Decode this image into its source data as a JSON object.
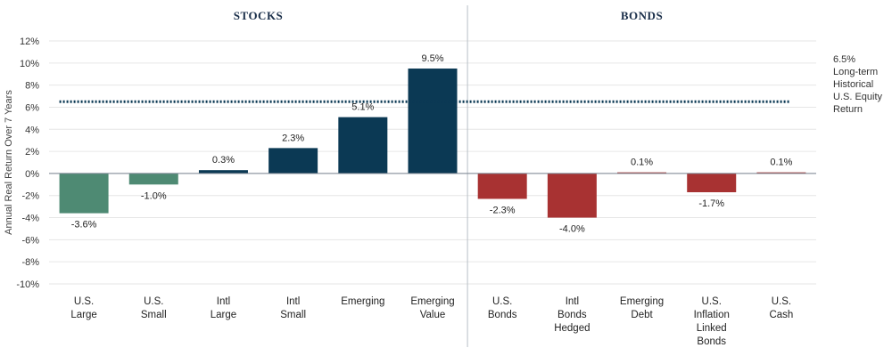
{
  "chart_data": {
    "type": "bar",
    "ylabel": "Annual Real Return Over 7 Years",
    "ylim": [
      -10,
      12
    ],
    "yticks": [
      "12%",
      "10%",
      "8%",
      "6%",
      "4%",
      "2%",
      "0%",
      "-2%",
      "-4%",
      "-6%",
      "-8%",
      "-10%"
    ],
    "grid": true,
    "groups": [
      {
        "title": "STOCKS",
        "categories": [
          "U.S. Large",
          "U.S. Small",
          "Intl Large",
          "Intl Small",
          "Emerging",
          "Emerging Value"
        ]
      },
      {
        "title": "BONDS",
        "categories": [
          "U.S. Bonds",
          "Intl Bonds Hedged",
          "Emerging Debt",
          "U.S. Inflation Linked Bonds",
          "U.S. Cash"
        ]
      }
    ],
    "categories": [
      [
        "U.S.",
        "Large"
      ],
      [
        "U.S.",
        "Small"
      ],
      [
        "Intl",
        "Large"
      ],
      [
        "Intl",
        "Small"
      ],
      [
        "Emerging"
      ],
      [
        "Emerging",
        "Value"
      ],
      [
        "U.S.",
        "Bonds"
      ],
      [
        "Intl",
        "Bonds",
        "Hedged"
      ],
      [
        "Emerging",
        "Debt"
      ],
      [
        "U.S.",
        "Inflation",
        "Linked",
        "Bonds"
      ],
      [
        "U.S.",
        "Cash"
      ]
    ],
    "values": [
      -3.6,
      -1.0,
      0.3,
      2.3,
      5.1,
      9.5,
      -2.3,
      -4.0,
      0.1,
      -1.7,
      0.1
    ],
    "value_labels": [
      "-3.6%",
      "-1.0%",
      "0.3%",
      "2.3%",
      "5.1%",
      "9.5%",
      "-2.3%",
      "-4.0%",
      "0.1%",
      "-1.7%",
      "0.1%"
    ],
    "colors": [
      "#4e8a73",
      "#4e8a73",
      "#0b3954",
      "#0b3954",
      "#0b3954",
      "#0b3954",
      "#a83232",
      "#a83232",
      "#a83232",
      "#a83232",
      "#a83232"
    ],
    "reference_line": {
      "value": 6.5,
      "style": "dotted",
      "color": "#0b3954",
      "label_lines": [
        "6.5%",
        "Long-term",
        "Historical",
        "U.S. Equity",
        "Return"
      ]
    },
    "divider_after_index": 5
  }
}
